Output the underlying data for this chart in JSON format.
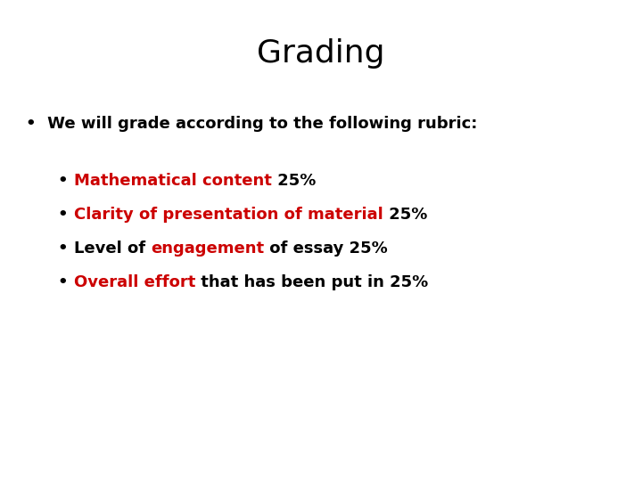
{
  "title": "Grading",
  "title_fontsize": 26,
  "title_color": "#000000",
  "background_color": "#ffffff",
  "bullet1": "We will grade according to the following rubric:",
  "bullet1_fontsize": 13,
  "sub_bullets": [
    {
      "parts": [
        {
          "text": "Mathematical content",
          "color": "#cc0000",
          "bold": true
        },
        {
          "text": " 25%",
          "color": "#000000",
          "bold": true
        }
      ]
    },
    {
      "parts": [
        {
          "text": "Clarity of presentation of material",
          "color": "#cc0000",
          "bold": true
        },
        {
          "text": " 25%",
          "color": "#000000",
          "bold": true
        }
      ]
    },
    {
      "parts": [
        {
          "text": "Level of ",
          "color": "#000000",
          "bold": true
        },
        {
          "text": "engagement",
          "color": "#cc0000",
          "bold": true
        },
        {
          "text": " of essay 25%",
          "color": "#000000",
          "bold": true
        }
      ]
    },
    {
      "parts": [
        {
          "text": "Overall effort",
          "color": "#cc0000",
          "bold": true
        },
        {
          "text": " that has been put in 25%",
          "color": "#000000",
          "bold": true
        }
      ]
    }
  ],
  "sub_bullet_fontsize": 13,
  "figsize": [
    7.2,
    5.4
  ],
  "dpi": 100
}
